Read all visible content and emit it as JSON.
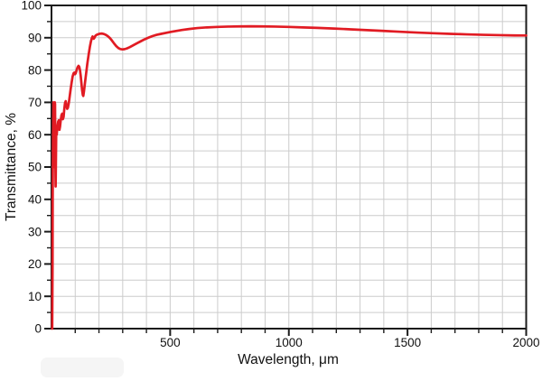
{
  "figure": {
    "background": "#ffffff",
    "frame_color": "#1b1b1b",
    "grid_color": "#cccccc",
    "tick_color": "#1b1b1b",
    "watermark_color": "#f5f5f5"
  },
  "chart_data": {
    "type": "line",
    "title": "",
    "xlabel": "Wavelength, μm",
    "ylabel": "Transmittance, %",
    "xlim": [
      0,
      2000
    ],
    "ylim": [
      0,
      100
    ],
    "x_major_ticks": [
      500,
      1000,
      1500,
      2000
    ],
    "x_tick_labels": [
      "500",
      "1000",
      "1500",
      "2000"
    ],
    "x_minor_tick_step": 100,
    "y_major_ticks": [
      0,
      10,
      20,
      30,
      40,
      50,
      60,
      70,
      80,
      90,
      100
    ],
    "y_tick_labels": [
      "0",
      "10",
      "20",
      "30",
      "40",
      "50",
      "60",
      "70",
      "80",
      "90",
      "100"
    ],
    "y_minor_tick_step": 5,
    "grid": {
      "shown": true,
      "vertical_step_um": 100,
      "horizontal_step_pct": 5
    },
    "legend_position": "none",
    "series": [
      {
        "name": "Transmittance",
        "color": "#e11b23",
        "line_width": 2.7,
        "points": [
          [
            3,
            0
          ],
          [
            4.5,
            20
          ],
          [
            5,
            40
          ],
          [
            6,
            55
          ],
          [
            7,
            63
          ],
          [
            8,
            70
          ],
          [
            9,
            66
          ],
          [
            10,
            62
          ],
          [
            11,
            55
          ],
          [
            12,
            50
          ],
          [
            12.5,
            55
          ],
          [
            13,
            62
          ],
          [
            14,
            70
          ],
          [
            15,
            69.5
          ],
          [
            15.5,
            63
          ],
          [
            16,
            57
          ],
          [
            17,
            47
          ],
          [
            17.5,
            44
          ],
          [
            18,
            47
          ],
          [
            19,
            54
          ],
          [
            20,
            61
          ],
          [
            22,
            60
          ],
          [
            25,
            62.5
          ],
          [
            28,
            64
          ],
          [
            31,
            64.5
          ],
          [
            33.5,
            61.5
          ],
          [
            36,
            62.5
          ],
          [
            39,
            64.5
          ],
          [
            42,
            66
          ],
          [
            45,
            66.5
          ],
          [
            48,
            64.8
          ],
          [
            51,
            65.5
          ],
          [
            54,
            68
          ],
          [
            57,
            69.8
          ],
          [
            60,
            70.4
          ],
          [
            63,
            69.2
          ],
          [
            66,
            68
          ],
          [
            69,
            68.3
          ],
          [
            73,
            69.8
          ],
          [
            77,
            72
          ],
          [
            81,
            74.2
          ],
          [
            85,
            76.2
          ],
          [
            89,
            78
          ],
          [
            93,
            79
          ],
          [
            96,
            79.2
          ],
          [
            99,
            78.7
          ],
          [
            102,
            79
          ],
          [
            106,
            80
          ],
          [
            110,
            80.9
          ],
          [
            114,
            81.3
          ],
          [
            117,
            81
          ],
          [
            120,
            80
          ],
          [
            123,
            78.3
          ],
          [
            126,
            76
          ],
          [
            129,
            73.8
          ],
          [
            132,
            72.3
          ],
          [
            134,
            72
          ],
          [
            137,
            73.5
          ],
          [
            141,
            76
          ],
          [
            146,
            79
          ],
          [
            151,
            82
          ],
          [
            157,
            85
          ],
          [
            162,
            87.3
          ],
          [
            166,
            88.8
          ],
          [
            170,
            89.9
          ],
          [
            173,
            90.4
          ],
          [
            176,
            90
          ],
          [
            178,
            89.7
          ],
          [
            181,
            90
          ],
          [
            185,
            90.6
          ],
          [
            190,
            90.9
          ],
          [
            197,
            91.1
          ],
          [
            205,
            91.25
          ],
          [
            213,
            91.3
          ],
          [
            221,
            91.15
          ],
          [
            229,
            90.9
          ],
          [
            237,
            90.5
          ],
          [
            246,
            89.9
          ],
          [
            255,
            89.1
          ],
          [
            264,
            88.2
          ],
          [
            273,
            87.4
          ],
          [
            282,
            86.8
          ],
          [
            290,
            86.5
          ],
          [
            298,
            86.4
          ],
          [
            307,
            86.45
          ],
          [
            318,
            86.7
          ],
          [
            330,
            87.1
          ],
          [
            345,
            87.7
          ],
          [
            360,
            88.3
          ],
          [
            376,
            88.9
          ],
          [
            392,
            89.5
          ],
          [
            408,
            90
          ],
          [
            425,
            90.5
          ],
          [
            443,
            90.9
          ],
          [
            462,
            91.2
          ],
          [
            482,
            91.5
          ],
          [
            503,
            91.8
          ],
          [
            525,
            92.1
          ],
          [
            550,
            92.4
          ],
          [
            580,
            92.7
          ],
          [
            615,
            93
          ],
          [
            655,
            93.2
          ],
          [
            700,
            93.35
          ],
          [
            745,
            93.45
          ],
          [
            790,
            93.5
          ],
          [
            840,
            93.55
          ],
          [
            890,
            93.5
          ],
          [
            940,
            93.45
          ],
          [
            1000,
            93.35
          ],
          [
            1060,
            93.2
          ],
          [
            1120,
            93.05
          ],
          [
            1190,
            92.85
          ],
          [
            1260,
            92.6
          ],
          [
            1330,
            92.35
          ],
          [
            1400,
            92.1
          ],
          [
            1470,
            91.85
          ],
          [
            1540,
            91.6
          ],
          [
            1610,
            91.4
          ],
          [
            1680,
            91.2
          ],
          [
            1750,
            91.05
          ],
          [
            1820,
            90.9
          ],
          [
            1890,
            90.8
          ],
          [
            1950,
            90.72
          ],
          [
            2000,
            90.7
          ]
        ]
      }
    ]
  }
}
